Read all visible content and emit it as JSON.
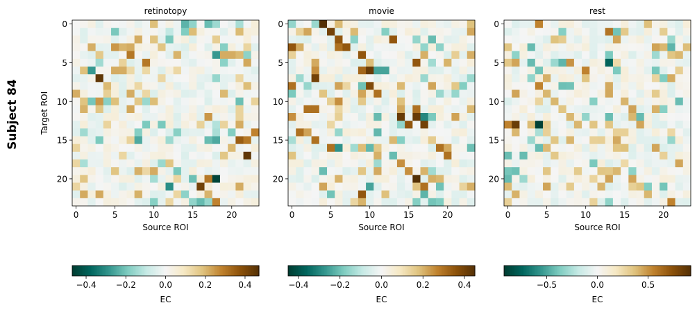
{
  "figure": {
    "row_label": "Subject 84"
  },
  "colormap": {
    "name": "BrBG",
    "stops": [
      "#003c30",
      "#01665e",
      "#35978f",
      "#80cdc1",
      "#c7eae5",
      "#f5f5f5",
      "#f6e8c3",
      "#dfc27d",
      "#bf812d",
      "#8c510a",
      "#543005"
    ]
  },
  "chart_data": [
    {
      "type": "heatmap",
      "title": "retinotopy",
      "xlabel": "Source ROI",
      "ylabel": "Target ROI",
      "x_ticks": [
        0,
        5,
        10,
        15,
        20
      ],
      "y_ticks": [
        0,
        5,
        10,
        15,
        20
      ],
      "n_roi": 24,
      "vmin": -0.47,
      "vmax": 0.47,
      "colorbar": {
        "label": "EC",
        "ticks": [
          -0.4,
          -0.2,
          0.0,
          0.2,
          0.4
        ],
        "tick_labels": [
          "−0.4",
          "−0.2",
          "0.0",
          "0.2",
          "0.4"
        ]
      },
      "strong_cells": [
        [
          0,
          18,
          -0.15
        ],
        [
          1,
          12,
          -0.1
        ],
        [
          3,
          5,
          0.25
        ],
        [
          3,
          7,
          0.22
        ],
        [
          3,
          11,
          0.18
        ],
        [
          4,
          7,
          0.3
        ],
        [
          4,
          19,
          0.22
        ],
        [
          4,
          20,
          0.22
        ],
        [
          4,
          21,
          0.2
        ],
        [
          4,
          18,
          -0.28
        ],
        [
          5,
          9,
          0.3
        ],
        [
          6,
          2,
          -0.28
        ],
        [
          7,
          3,
          0.45
        ],
        [
          8,
          4,
          0.2
        ],
        [
          9,
          7,
          0.22
        ],
        [
          10,
          3,
          0.25
        ],
        [
          10,
          2,
          -0.2
        ],
        [
          11,
          3,
          0.18
        ],
        [
          12,
          17,
          0.25
        ],
        [
          13,
          18,
          -0.12
        ],
        [
          13,
          21,
          0.22
        ],
        [
          14,
          8,
          -0.18
        ],
        [
          14,
          23,
          0.28
        ],
        [
          15,
          8,
          -0.25
        ],
        [
          15,
          18,
          -0.25
        ],
        [
          15,
          21,
          0.35
        ],
        [
          15,
          22,
          0.3
        ],
        [
          16,
          20,
          0.2
        ],
        [
          17,
          22,
          0.45
        ],
        [
          18,
          12,
          0.18
        ],
        [
          20,
          18,
          -0.45
        ],
        [
          20,
          17,
          0.3
        ],
        [
          21,
          16,
          0.42
        ],
        [
          21,
          12,
          -0.3
        ],
        [
          23,
          16,
          -0.22
        ],
        [
          23,
          18,
          0.28
        ],
        [
          21,
          21,
          0.22
        ],
        [
          19,
          5,
          0.18
        ]
      ],
      "seed": 11
    },
    {
      "type": "heatmap",
      "title": "movie",
      "xlabel": "Source ROI",
      "ylabel": "",
      "x_ticks": [
        0,
        5,
        10,
        15,
        20
      ],
      "y_ticks": [
        0,
        5,
        10,
        15,
        20
      ],
      "n_roi": 24,
      "vmin": -0.45,
      "vmax": 0.45,
      "colorbar": {
        "label": "EC",
        "ticks": [
          -0.4,
          -0.2,
          0.0,
          0.2,
          0.4
        ],
        "tick_labels": [
          "−0.4",
          "−0.2",
          "0.0",
          "0.2",
          "0.4"
        ]
      },
      "strong_cells": [
        [
          0,
          4,
          0.45
        ],
        [
          1,
          5,
          0.4
        ],
        [
          2,
          6,
          0.35
        ],
        [
          2,
          13,
          0.35
        ],
        [
          3,
          7,
          0.35
        ],
        [
          3,
          0,
          0.35
        ],
        [
          3,
          6,
          0.3
        ],
        [
          4,
          9,
          0.35
        ],
        [
          5,
          16,
          0.35
        ],
        [
          5,
          20,
          0.2
        ],
        [
          6,
          10,
          0.42
        ],
        [
          6,
          9,
          0.32
        ],
        [
          6,
          11,
          -0.25
        ],
        [
          6,
          12,
          -0.25
        ],
        [
          6,
          3,
          0.25
        ],
        [
          7,
          3,
          0.4
        ],
        [
          8,
          0,
          0.3
        ],
        [
          8,
          10,
          0.38
        ],
        [
          9,
          11,
          0.3
        ],
        [
          10,
          6,
          0.25
        ],
        [
          11,
          2,
          0.3
        ],
        [
          11,
          3,
          0.3
        ],
        [
          11,
          16,
          0.3
        ],
        [
          12,
          14,
          0.42
        ],
        [
          12,
          16,
          0.42
        ],
        [
          12,
          17,
          -0.3
        ],
        [
          12,
          0,
          0.25
        ],
        [
          13,
          15,
          0.35
        ],
        [
          13,
          17,
          0.4
        ],
        [
          14,
          1,
          0.3
        ],
        [
          15,
          3,
          0.3
        ],
        [
          16,
          5,
          0.3
        ],
        [
          16,
          6,
          -0.28
        ],
        [
          16,
          19,
          0.3
        ],
        [
          17,
          20,
          0.3
        ],
        [
          18,
          14,
          0.25
        ],
        [
          19,
          15,
          0.25
        ],
        [
          20,
          16,
          0.45
        ],
        [
          21,
          17,
          0.3
        ],
        [
          21,
          19,
          -0.2
        ],
        [
          21,
          10,
          -0.25
        ],
        [
          22,
          9,
          0.35
        ],
        [
          23,
          9,
          0.2
        ]
      ],
      "seed": 23
    },
    {
      "type": "heatmap",
      "title": "rest",
      "xlabel": "Source ROI",
      "ylabel": "",
      "x_ticks": [
        0,
        5,
        10,
        15,
        20
      ],
      "y_ticks": [
        0,
        5,
        10,
        15,
        20
      ],
      "n_roi": 24,
      "vmin": -0.92,
      "vmax": 0.92,
      "colorbar": {
        "label": "EC",
        "ticks": [
          -0.5,
          0.0,
          0.5
        ],
        "tick_labels": [
          "−0.5",
          "0.0",
          "0.5"
        ]
      },
      "strong_cells": [
        [
          0,
          4,
          0.55
        ],
        [
          1,
          13,
          0.6
        ],
        [
          2,
          14,
          0.45
        ],
        [
          2,
          21,
          -0.3
        ],
        [
          3,
          20,
          0.4
        ],
        [
          3,
          0,
          0.35
        ],
        [
          4,
          21,
          0.35
        ],
        [
          5,
          1,
          0.45
        ],
        [
          5,
          8,
          0.5
        ],
        [
          5,
          7,
          -0.45
        ],
        [
          5,
          13,
          -0.75
        ],
        [
          5,
          14,
          0.25
        ],
        [
          6,
          10,
          0.55
        ],
        [
          8,
          4,
          0.55
        ],
        [
          9,
          5,
          0.4
        ],
        [
          10,
          6,
          0.4
        ],
        [
          11,
          7,
          0.35
        ],
        [
          12,
          8,
          0.4
        ],
        [
          12,
          16,
          0.4
        ],
        [
          13,
          0,
          0.55
        ],
        [
          13,
          1,
          0.85
        ],
        [
          13,
          4,
          -0.9
        ],
        [
          13,
          9,
          0.4
        ],
        [
          13,
          13,
          0.35
        ],
        [
          13,
          17,
          0.45
        ],
        [
          14,
          5,
          0.3
        ],
        [
          14,
          14,
          0.3
        ],
        [
          14,
          15,
          0.3
        ],
        [
          15,
          11,
          0.3
        ],
        [
          16,
          19,
          0.45
        ],
        [
          17,
          20,
          0.3
        ],
        [
          18,
          22,
          0.45
        ],
        [
          19,
          14,
          0.4
        ],
        [
          20,
          16,
          0.45
        ],
        [
          21,
          17,
          0.35
        ],
        [
          22,
          18,
          0.4
        ],
        [
          23,
          21,
          0.55
        ],
        [
          23,
          0,
          0.3
        ]
      ],
      "seed": 37
    }
  ]
}
